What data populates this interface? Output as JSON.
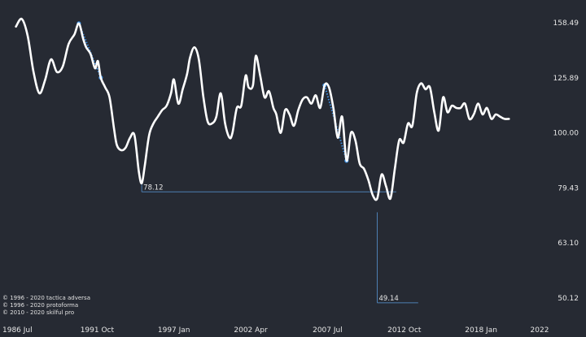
{
  "chart_data": {
    "type": "line",
    "x_axis": {
      "tick_labels": [
        "1986 Jul",
        "1991 Oct",
        "1997 Jan",
        "2002 Apr",
        "2007 Jul",
        "2012 Oct",
        "2018 Jan",
        "2022"
      ],
      "tick_years": [
        1986.5,
        1991.75,
        1997.0,
        2002.25,
        2007.5,
        2012.75,
        2018.0,
        2022.0
      ]
    },
    "y_axis": {
      "scale": "log",
      "position": "right",
      "tick_labels": [
        "158.49",
        "125.89",
        "100.00",
        "79.43",
        "63.10",
        "50.12"
      ],
      "tick_values": [
        158.49,
        125.89,
        100.0,
        79.43,
        63.1,
        50.12
      ]
    },
    "grid": false,
    "series": [
      {
        "color": "#ffffff",
        "points": [
          [
            1986.2,
            156
          ],
          [
            1986.6,
            161
          ],
          [
            1987.0,
            150
          ],
          [
            1987.4,
            129
          ],
          [
            1987.8,
            118
          ],
          [
            1988.2,
            125
          ],
          [
            1988.6,
            136
          ],
          [
            1989.0,
            129
          ],
          [
            1989.4,
            132
          ],
          [
            1989.8,
            145
          ],
          [
            1990.2,
            151
          ],
          [
            1990.5,
            158
          ],
          [
            1990.8,
            148
          ],
          [
            1991.0,
            143
          ],
          [
            1991.3,
            139
          ],
          [
            1991.6,
            131
          ],
          [
            1991.8,
            135
          ],
          [
            1992.0,
            126
          ],
          [
            1992.3,
            121
          ],
          [
            1992.6,
            116
          ],
          [
            1992.9,
            102
          ],
          [
            1993.1,
            95
          ],
          [
            1993.4,
            93
          ],
          [
            1993.7,
            94
          ],
          [
            1994.0,
            98
          ],
          [
            1994.3,
            99
          ],
          [
            1994.6,
            85
          ],
          [
            1994.8,
            81
          ],
          [
            1995.0,
            87
          ],
          [
            1995.3,
            99
          ],
          [
            1995.6,
            104
          ],
          [
            1995.9,
            107
          ],
          [
            1996.2,
            110
          ],
          [
            1996.5,
            112
          ],
          [
            1996.8,
            118
          ],
          [
            1997.0,
            125
          ],
          [
            1997.3,
            113
          ],
          [
            1997.6,
            120
          ],
          [
            1997.9,
            128
          ],
          [
            1998.1,
            137
          ],
          [
            1998.4,
            143
          ],
          [
            1998.7,
            136
          ],
          [
            1999.0,
            117
          ],
          [
            1999.3,
            105
          ],
          [
            1999.6,
            104
          ],
          [
            1999.9,
            107
          ],
          [
            2000.2,
            118
          ],
          [
            2000.5,
            104
          ],
          [
            2000.8,
            98
          ],
          [
            2001.0,
            100
          ],
          [
            2001.3,
            111
          ],
          [
            2001.6,
            112
          ],
          [
            2001.9,
            127
          ],
          [
            2002.1,
            121
          ],
          [
            2002.4,
            122
          ],
          [
            2002.6,
            138
          ],
          [
            2002.9,
            127
          ],
          [
            2003.2,
            116
          ],
          [
            2003.5,
            119
          ],
          [
            2003.8,
            111
          ],
          [
            2004.0,
            108
          ],
          [
            2004.3,
            100
          ],
          [
            2004.6,
            110
          ],
          [
            2004.9,
            108
          ],
          [
            2005.2,
            103
          ],
          [
            2005.5,
            110
          ],
          [
            2005.8,
            115
          ],
          [
            2006.1,
            116
          ],
          [
            2006.4,
            113
          ],
          [
            2006.7,
            117
          ],
          [
            2007.0,
            111
          ],
          [
            2007.3,
            122
          ],
          [
            2007.6,
            121
          ],
          [
            2007.9,
            111
          ],
          [
            2008.2,
            98
          ],
          [
            2008.5,
            107
          ],
          [
            2008.8,
            89
          ],
          [
            2009.1,
            100
          ],
          [
            2009.4,
            97
          ],
          [
            2009.7,
            88
          ],
          [
            2010.0,
            86
          ],
          [
            2010.3,
            82
          ],
          [
            2010.6,
            77
          ],
          [
            2010.9,
            76
          ],
          [
            2011.2,
            84
          ],
          [
            2011.5,
            80
          ],
          [
            2011.8,
            76
          ],
          [
            2012.1,
            86
          ],
          [
            2012.4,
            97
          ],
          [
            2012.7,
            96
          ],
          [
            2013.0,
            104
          ],
          [
            2013.3,
            103
          ],
          [
            2013.6,
            118
          ],
          [
            2013.9,
            123
          ],
          [
            2014.2,
            120
          ],
          [
            2014.5,
            121
          ],
          [
            2014.8,
            109
          ],
          [
            2015.1,
            101
          ],
          [
            2015.4,
            116
          ],
          [
            2015.7,
            109
          ],
          [
            2016.0,
            112
          ],
          [
            2016.3,
            111
          ],
          [
            2016.6,
            111
          ],
          [
            2016.9,
            113
          ],
          [
            2017.2,
            106
          ],
          [
            2017.5,
            108
          ],
          [
            2017.8,
            113
          ],
          [
            2018.1,
            108
          ],
          [
            2018.4,
            111
          ],
          [
            2018.7,
            106
          ],
          [
            2019.0,
            108
          ],
          [
            2019.3,
            107
          ],
          [
            2019.6,
            106
          ],
          [
            2019.9,
            106
          ]
        ]
      }
    ],
    "highlights": [
      {
        "color": "#3d8ee0",
        "from": [
          1990.5,
          158
        ],
        "to": [
          1992.0,
          126
        ]
      },
      {
        "color": "#3d8ee0",
        "from": [
          2007.3,
          122
        ],
        "to": [
          2008.8,
          89
        ]
      }
    ],
    "annotations": [
      {
        "label": "78.12",
        "value": 78.12,
        "x_from": 1994.8,
        "x_to": 2012.2
      },
      {
        "label": "49.14",
        "value": 49.14,
        "x_from": 2010.9,
        "x_to": 2013.7,
        "vertical_from": 76
      }
    ],
    "copyright": [
      "© 1996 - 2020 tactica adversa",
      "© 1996 - 2020 protoforma",
      "© 2010 - 2020 skilful pro"
    ]
  }
}
